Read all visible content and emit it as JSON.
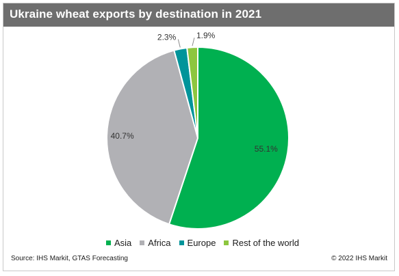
{
  "title": "Ukraine wheat exports by destination in 2021",
  "source": "Source: IHS Markit, GTAS Forecasting",
  "copyright": "© 2022 IHS Markit",
  "chart_data": {
    "type": "pie",
    "title": "Ukraine wheat exports by destination in 2021",
    "start_angle_deg": 0,
    "direction": "clockwise",
    "slices": [
      {
        "name": "Asia",
        "value": 55.1,
        "label": "55.1%",
        "color": "#00b050"
      },
      {
        "name": "Africa",
        "value": 40.7,
        "label": "40.7%",
        "color": "#b1b1b5"
      },
      {
        "name": "Europe",
        "value": 2.3,
        "label": "2.3%",
        "color": "#00949a"
      },
      {
        "name": "Rest of the world",
        "value": 1.9,
        "label": "1.9%",
        "color": "#8dc63f"
      }
    ],
    "legend_position": "bottom"
  }
}
